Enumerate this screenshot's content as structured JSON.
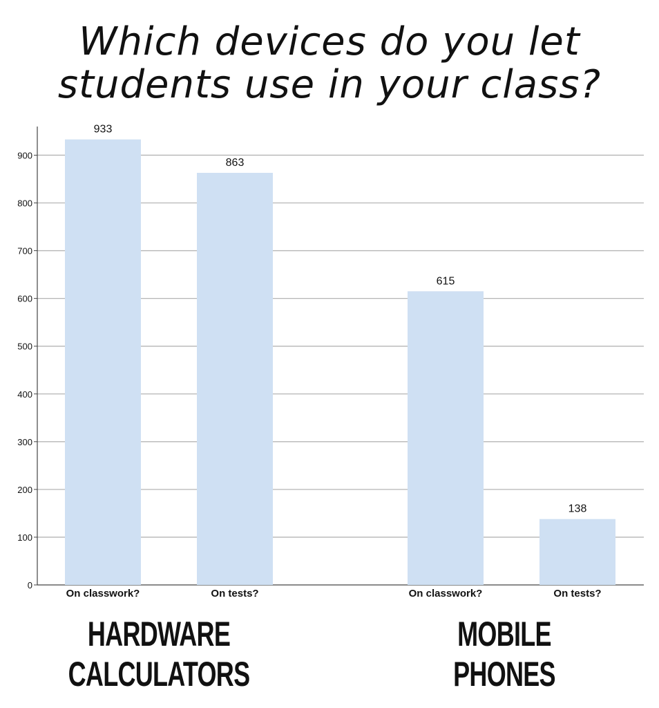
{
  "chart_data": {
    "type": "bar",
    "title": "Which devices do you let\nstudents use in your class?",
    "groups": [
      {
        "label": "HARDWARE\nCALCULATORS",
        "categories": [
          "On classwork?",
          "On tests?"
        ],
        "values": [
          933,
          863
        ]
      },
      {
        "label": "MOBILE\nPHONES",
        "categories": [
          "On classwork?",
          "On tests?"
        ],
        "values": [
          615,
          138
        ]
      }
    ],
    "yticks": [
      0,
      100,
      200,
      300,
      400,
      500,
      600,
      700,
      800,
      900
    ],
    "ylim": [
      0,
      960
    ],
    "grid": true,
    "colors": {
      "bar": "#cfe0f3",
      "grid": "#b5b5b5",
      "axis": "#444444",
      "text": "#111111"
    }
  }
}
